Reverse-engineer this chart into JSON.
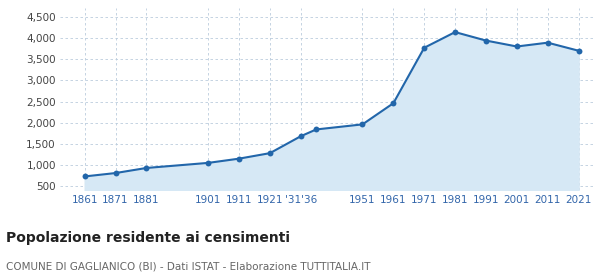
{
  "years": [
    1861,
    1871,
    1881,
    1901,
    1911,
    1921,
    1931,
    1936,
    1951,
    1961,
    1971,
    1981,
    1991,
    2001,
    2011,
    2021
  ],
  "population": [
    730,
    810,
    930,
    1050,
    1150,
    1280,
    1680,
    1840,
    1960,
    2460,
    3770,
    4140,
    3940,
    3800,
    3890,
    3700
  ],
  "line_color": "#2266aa",
  "fill_color": "#d6e8f5",
  "marker_color": "#2266aa",
  "background_color": "#ffffff",
  "grid_color": "#bbccdd",
  "title": "Popolazione residente ai censimenti",
  "subtitle": "COMUNE DI GAGLIANICO (BI) - Dati ISTAT - Elaborazione TUTTITALIA.IT",
  "ylim": [
    400,
    4700
  ],
  "yticks": [
    500,
    1000,
    1500,
    2000,
    2500,
    3000,
    3500,
    4000,
    4500
  ],
  "title_fontsize": 10,
  "subtitle_fontsize": 7.5,
  "tick_fontsize": 7.5,
  "axis_label_color": "#3366aa"
}
